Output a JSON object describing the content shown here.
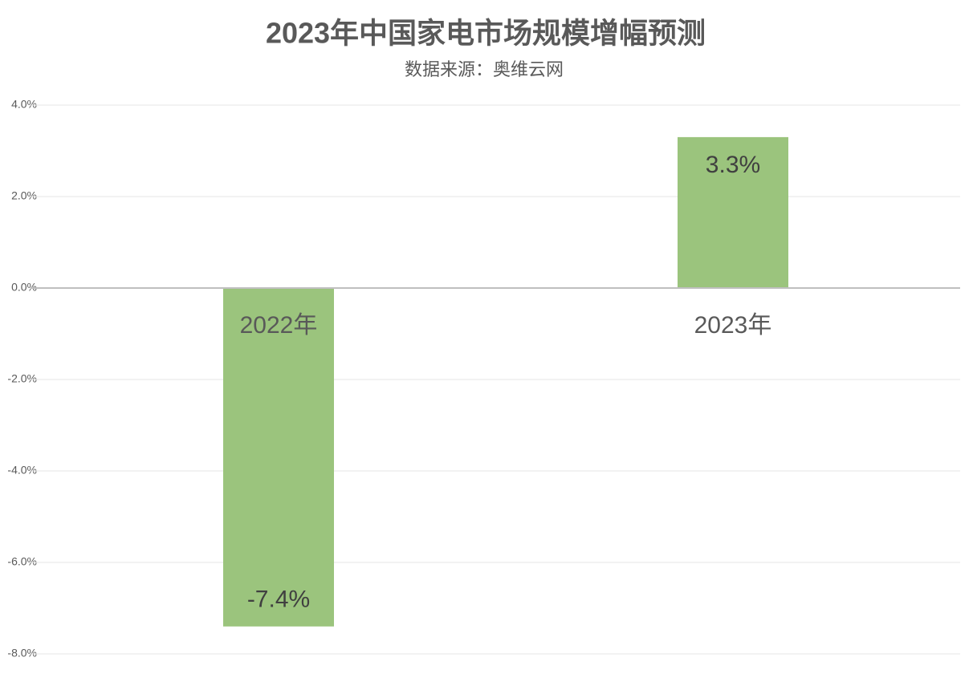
{
  "chart_data": {
    "type": "bar",
    "title": "2023年中国家电市场规模增幅预测",
    "subtitle": "数据来源：奥维云网",
    "categories": [
      "2022年",
      "2023年"
    ],
    "values": [
      -7.4,
      3.3
    ],
    "value_labels": [
      "-7.4%",
      "3.3%"
    ],
    "color": "#9bc47d",
    "ylim": [
      -8,
      4
    ],
    "yticks": [
      {
        "value": -8,
        "label": "-8.0%"
      },
      {
        "value": -6,
        "label": "-6.0%"
      },
      {
        "value": -4,
        "label": "-4.0%"
      },
      {
        "value": -2,
        "label": "-2.0%"
      },
      {
        "value": 0,
        "label": "0.0%"
      },
      {
        "value": 2,
        "label": "2.0%"
      },
      {
        "value": 4,
        "label": "4.0%"
      }
    ],
    "grid": true
  }
}
